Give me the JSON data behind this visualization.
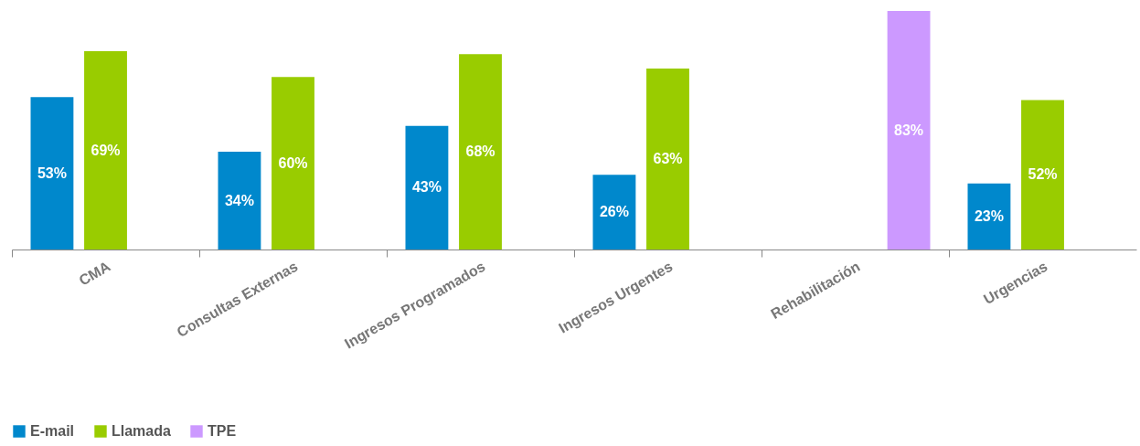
{
  "chart_data": {
    "type": "bar",
    "categories": [
      "CMA",
      "Consultas Externas",
      "Ingresos Programados",
      "Ingresos Urgentes",
      "Rehabilitación",
      "Urgencias"
    ],
    "series": [
      {
        "name": "E-mail",
        "color": "#0088cc",
        "values": [
          53,
          34,
          43,
          26,
          null,
          23
        ],
        "value_labels": [
          "53%",
          "34%",
          "43%",
          "26%",
          null,
          "23%"
        ]
      },
      {
        "name": "Llamada",
        "color": "#99cc00",
        "values": [
          69,
          60,
          68,
          63,
          null,
          52
        ],
        "value_labels": [
          "69%",
          "60%",
          "68%",
          "63%",
          null,
          "52%"
        ]
      },
      {
        "name": "TPE",
        "color": "#cc99ff",
        "values": [
          null,
          null,
          null,
          null,
          83,
          null
        ],
        "value_labels": [
          null,
          null,
          null,
          null,
          "83%",
          null
        ]
      }
    ],
    "legend": "bottom",
    "grid": false
  }
}
